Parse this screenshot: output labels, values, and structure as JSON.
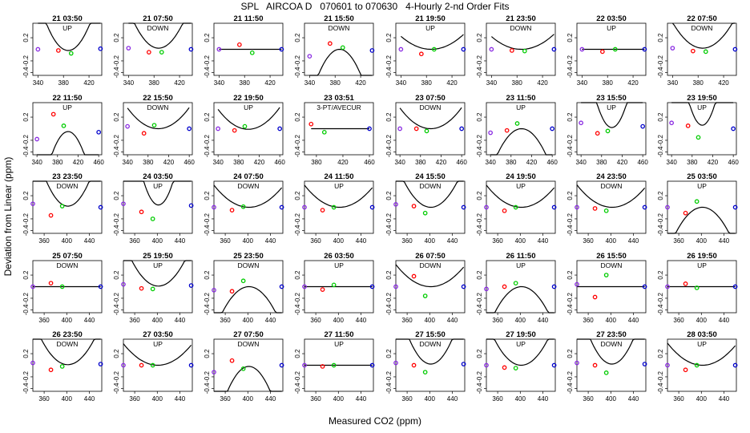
{
  "title": "SPL   AIRCOA D   070601 to 070630   4-Hourly 2-nd Order Fits",
  "ylabel": "Deviation from Linear (ppm)",
  "xlabel": "Measured CO2 (ppm)",
  "colors": {
    "low": "#8a2be2",
    "mid1": "#ff0000",
    "mid2": "#00cc00",
    "high": "#0000cc",
    "curve": "#000000"
  },
  "yticks": [
    0.2,
    -0.2,
    -0.4
  ],
  "ytick_labels": [
    "0.2",
    "-0.2",
    "-0.4"
  ],
  "rows": [
    {
      "xticks": [
        340,
        380,
        420
      ],
      "xtick_labels": [
        "340",
        "380",
        "420"
      ],
      "xlim": [
        332,
        440
      ]
    },
    {
      "xticks": [
        340,
        380,
        420,
        460
      ],
      "xtick_labels": [
        "340",
        "380",
        "420",
        "460"
      ],
      "xlim": [
        332,
        466
      ]
    },
    {
      "xticks": [
        360,
        400,
        440
      ],
      "xtick_labels": [
        "360",
        "400",
        "440"
      ],
      "xlim": [
        340,
        462
      ]
    },
    {
      "xticks": [
        360,
        400,
        440
      ],
      "xtick_labels": [
        "360",
        "400",
        "440"
      ],
      "xlim": [
        340,
        462
      ]
    },
    {
      "xticks": [
        360,
        400,
        440
      ],
      "xtick_labels": [
        "360",
        "400",
        "440"
      ],
      "xlim": [
        340,
        462
      ]
    }
  ],
  "row1_col3": {
    "xticks": [
      380,
      420,
      460
    ],
    "xtick_labels": [
      "380",
      "420",
      "460"
    ],
    "xlim": [
      362,
      466
    ]
  },
  "chart_data": {
    "type": "scatter",
    "ylim": [
      -0.45,
      0.45
    ],
    "panels": [
      {
        "title": "21 03:50",
        "label": "UP",
        "x": [
          340,
          372,
          392,
          438
        ],
        "y": [
          0.0,
          -0.02,
          -0.07,
          0.01
        ],
        "curve": [
          0.0004,
          -0.12,
          -0.02
        ]
      },
      {
        "title": "21 07:50",
        "label": "DOWN",
        "x": [
          340,
          372,
          392,
          438
        ],
        "y": [
          0.02,
          -0.05,
          -0.05,
          0.0
        ],
        "curve": [
          0.0003,
          -0.08,
          0.02
        ]
      },
      {
        "title": "21 11:50",
        "label": "",
        "x": [
          340,
          372,
          392,
          438
        ],
        "y": [
          0.0,
          0.08,
          -0.06,
          0.0
        ],
        "curve": [
          0,
          0,
          0
        ]
      },
      {
        "title": "21 15:50",
        "label": "DOWN",
        "x": [
          340,
          372,
          392,
          438
        ],
        "y": [
          -0.12,
          0.1,
          0.03,
          -0.02
        ],
        "curve": [
          -0.0004,
          0.09,
          0.0
        ]
      },
      {
        "title": "21 19:50",
        "label": "UP",
        "x": [
          340,
          372,
          392,
          438
        ],
        "y": [
          0.0,
          -0.08,
          0.0,
          0.0
        ],
        "curve": [
          0.0001,
          -0.03,
          0.0
        ]
      },
      {
        "title": "21 23:50",
        "label": "DOWN",
        "x": [
          340,
          372,
          392,
          438
        ],
        "y": [
          0.0,
          -0.02,
          -0.03,
          0.0
        ],
        "curve": [
          0.0001,
          -0.02,
          0.0
        ]
      },
      {
        "title": "22 03:50",
        "label": "UP",
        "x": [
          340,
          372,
          392,
          438
        ],
        "y": [
          0.0,
          -0.04,
          0.0,
          0.0
        ],
        "curve": [
          0,
          0,
          0
        ]
      },
      {
        "title": "22 07:50",
        "label": "DOWN",
        "x": [
          340,
          372,
          392,
          438
        ],
        "y": [
          0.02,
          -0.03,
          -0.04,
          0.0
        ],
        "curve": [
          0.0002,
          -0.05,
          0.02
        ]
      },
      {
        "title": "22 11:50",
        "label": "UP",
        "x": [
          340,
          372,
          392,
          460
        ],
        "y": [
          -0.18,
          0.25,
          0.05,
          -0.06
        ],
        "curve": [
          -0.0004,
          0.16,
          -0.05
        ]
      },
      {
        "title": "22 15:50",
        "label": "DOWN",
        "x": [
          340,
          372,
          392,
          460
        ],
        "y": [
          0.04,
          -0.08,
          0.06,
          0.0
        ],
        "curve": [
          0.0001,
          -0.02,
          0.0
        ]
      },
      {
        "title": "22 19:50",
        "label": "UP",
        "x": [
          340,
          372,
          392,
          460
        ],
        "y": [
          0.0,
          -0.03,
          0.04,
          0.0
        ],
        "curve": [
          0.0001,
          0.01,
          -0.01
        ]
      },
      {
        "title": "23 03:51",
        "label": "3-PT/AVECUR",
        "x": [
          372,
          392,
          460
        ],
        "y": [
          0.08,
          -0.06,
          0.0
        ],
        "curve": [
          0,
          0,
          0
        ]
      },
      {
        "title": "23 07:50",
        "label": "DOWN",
        "x": [
          340,
          372,
          392,
          460
        ],
        "y": [
          0.0,
          0.0,
          -0.04,
          0.0
        ],
        "curve": [
          0.0001,
          -0.02,
          0.0
        ]
      },
      {
        "title": "23 11:50",
        "label": "UP",
        "x": [
          340,
          372,
          392,
          460
        ],
        "y": [
          -0.07,
          -0.03,
          0.09,
          0.0
        ],
        "curve": [
          -0.0002,
          0.08,
          0.0
        ]
      },
      {
        "title": "23 15:50",
        "label": "UP",
        "x": [
          340,
          372,
          392,
          460
        ],
        "y": [
          0.1,
          -0.08,
          -0.04,
          0.04
        ],
        "curve": [
          0.0005,
          -0.12,
          0.02
        ]
      },
      {
        "title": "23 19:50",
        "label": "UP",
        "x": [
          340,
          372,
          392,
          460
        ],
        "y": [
          0.1,
          0.05,
          -0.15,
          0.0
        ],
        "curve": [
          0.0006,
          -0.09,
          0.06
        ]
      },
      {
        "title": "23 23:50",
        "label": "DOWN",
        "x": [
          340,
          372,
          392,
          460
        ],
        "y": [
          0.06,
          -0.14,
          0.02,
          0.0
        ],
        "curve": [
          0.0003,
          -0.07,
          0.02
        ]
      },
      {
        "title": "24 03:50",
        "label": "UP",
        "x": [
          340,
          372,
          392,
          460
        ],
        "y": [
          0.06,
          -0.08,
          -0.2,
          0.03
        ],
        "curve": [
          0.0006,
          -0.15,
          0.04
        ]
      },
      {
        "title": "24 07:50",
        "label": "DOWN",
        "x": [
          340,
          372,
          392,
          460
        ],
        "y": [
          0.0,
          -0.05,
          0.01,
          0.0
        ],
        "curve": [
          0.0001,
          -0.02,
          0.0
        ]
      },
      {
        "title": "24 11:50",
        "label": "UP",
        "x": [
          340,
          372,
          392,
          460
        ],
        "y": [
          0.0,
          -0.05,
          0.0,
          0.0
        ],
        "curve": [
          0.0001,
          -0.02,
          0.0
        ]
      },
      {
        "title": "24 15:50",
        "label": "DOWN",
        "x": [
          340,
          372,
          392,
          460
        ],
        "y": [
          0.05,
          0.02,
          -0.1,
          0.0
        ],
        "curve": [
          0.0002,
          -0.04,
          0.0
        ]
      },
      {
        "title": "24 19:50",
        "label": "UP",
        "x": [
          340,
          372,
          392,
          460
        ],
        "y": [
          0.0,
          -0.06,
          0.0,
          0.0
        ],
        "curve": [
          0.0001,
          -0.02,
          0.0
        ]
      },
      {
        "title": "24 23:50",
        "label": "DOWN",
        "x": [
          340,
          372,
          392,
          460
        ],
        "y": [
          0.0,
          -0.02,
          -0.06,
          0.0
        ],
        "curve": [
          0.0001,
          -0.03,
          0.0
        ]
      },
      {
        "title": "25 03:50",
        "label": "UP",
        "x": [
          340,
          372,
          392,
          460
        ],
        "y": [
          0.0,
          -0.1,
          0.1,
          0.0
        ],
        "curve": [
          -0.0002,
          0.04,
          0.0
        ]
      },
      {
        "title": "25 07:50",
        "label": "DOWN",
        "x": [
          340,
          372,
          392,
          460
        ],
        "y": [
          0.0,
          0.06,
          0.0,
          0.0
        ],
        "curve": [
          0,
          0,
          0
        ]
      },
      {
        "title": "25 19:50",
        "label": "UP",
        "x": [
          340,
          372,
          392,
          460
        ],
        "y": [
          0.04,
          -0.03,
          -0.04,
          0.02
        ],
        "curve": [
          0.0002,
          -0.04,
          0.01
        ]
      },
      {
        "title": "25 23:50",
        "label": "DOWN",
        "x": [
          340,
          372,
          392,
          460
        ],
        "y": [
          -0.06,
          -0.08,
          0.1,
          0.0
        ],
        "curve": [
          -0.0002,
          0.05,
          0.0
        ]
      },
      {
        "title": "26 03:50",
        "label": "UP",
        "x": [
          340,
          372,
          392,
          460
        ],
        "y": [
          0.0,
          -0.05,
          0.03,
          0.0
        ],
        "curve": [
          0,
          0,
          0
        ]
      },
      {
        "title": "26 07:50",
        "label": "DOWN",
        "x": [
          340,
          372,
          392,
          460
        ],
        "y": [
          0.0,
          0.18,
          -0.16,
          0.0
        ],
        "curve": [
          0.0001,
          -0.02,
          0.0
        ]
      },
      {
        "title": "26 11:50",
        "label": "UP",
        "x": [
          340,
          372,
          392,
          460
        ],
        "y": [
          -0.04,
          0.0,
          0.06,
          0.0
        ],
        "curve": [
          -0.0002,
          0.06,
          0.0
        ]
      },
      {
        "title": "26 15:50",
        "label": "DOWN",
        "x": [
          340,
          372,
          392,
          460
        ],
        "y": [
          0.04,
          -0.18,
          0.2,
          0.0
        ],
        "curve": [
          0,
          0,
          0
        ]
      },
      {
        "title": "26 19:50",
        "label": "UP",
        "x": [
          340,
          372,
          392,
          460
        ],
        "y": [
          0.0,
          0.05,
          -0.02,
          0.0
        ],
        "curve": [
          0,
          0,
          0
        ]
      },
      {
        "title": "26 23:50",
        "label": "DOWN",
        "x": [
          340,
          372,
          392,
          460
        ],
        "y": [
          0.04,
          -0.08,
          -0.02,
          0.02
        ],
        "curve": [
          0.0002,
          -0.04,
          0.01
        ]
      },
      {
        "title": "27 03:50",
        "label": "UP",
        "x": [
          340,
          372,
          392,
          460
        ],
        "y": [
          0.0,
          0.0,
          0.0,
          0.0
        ],
        "curve": [
          0.0001,
          0.0,
          0.0
        ]
      },
      {
        "title": "27 07:50",
        "label": "DOWN",
        "x": [
          340,
          372,
          392,
          460
        ],
        "y": [
          -0.12,
          0.08,
          -0.06,
          0.0
        ],
        "curve": [
          -0.0003,
          0.06,
          -0.02
        ]
      },
      {
        "title": "27 11:50",
        "label": "UP",
        "x": [
          340,
          372,
          392,
          460
        ],
        "y": [
          0.0,
          -0.02,
          0.0,
          0.0
        ],
        "curve": [
          0,
          0,
          0
        ]
      },
      {
        "title": "27 15:50",
        "label": "DOWN",
        "x": [
          340,
          372,
          392,
          460
        ],
        "y": [
          0.04,
          0.0,
          -0.12,
          0.02
        ],
        "curve": [
          0.0003,
          -0.06,
          0.02
        ]
      },
      {
        "title": "27 19:50",
        "label": "UP",
        "x": [
          340,
          372,
          392,
          460
        ],
        "y": [
          0.0,
          -0.04,
          -0.05,
          0.0
        ],
        "curve": [
          0.0002,
          -0.03,
          0.0
        ]
      },
      {
        "title": "27 23:50",
        "label": "DOWN",
        "x": [
          340,
          372,
          392,
          460
        ],
        "y": [
          0.04,
          0.0,
          -0.13,
          0.02
        ],
        "curve": [
          0.0003,
          -0.06,
          0.02
        ]
      },
      {
        "title": "28 03:50",
        "label": "UP",
        "x": [
          340,
          372,
          392,
          460
        ],
        "y": [
          0.0,
          -0.08,
          0.0,
          0.0
        ],
        "curve": [
          0.0001,
          -0.02,
          0.0
        ]
      }
    ]
  }
}
